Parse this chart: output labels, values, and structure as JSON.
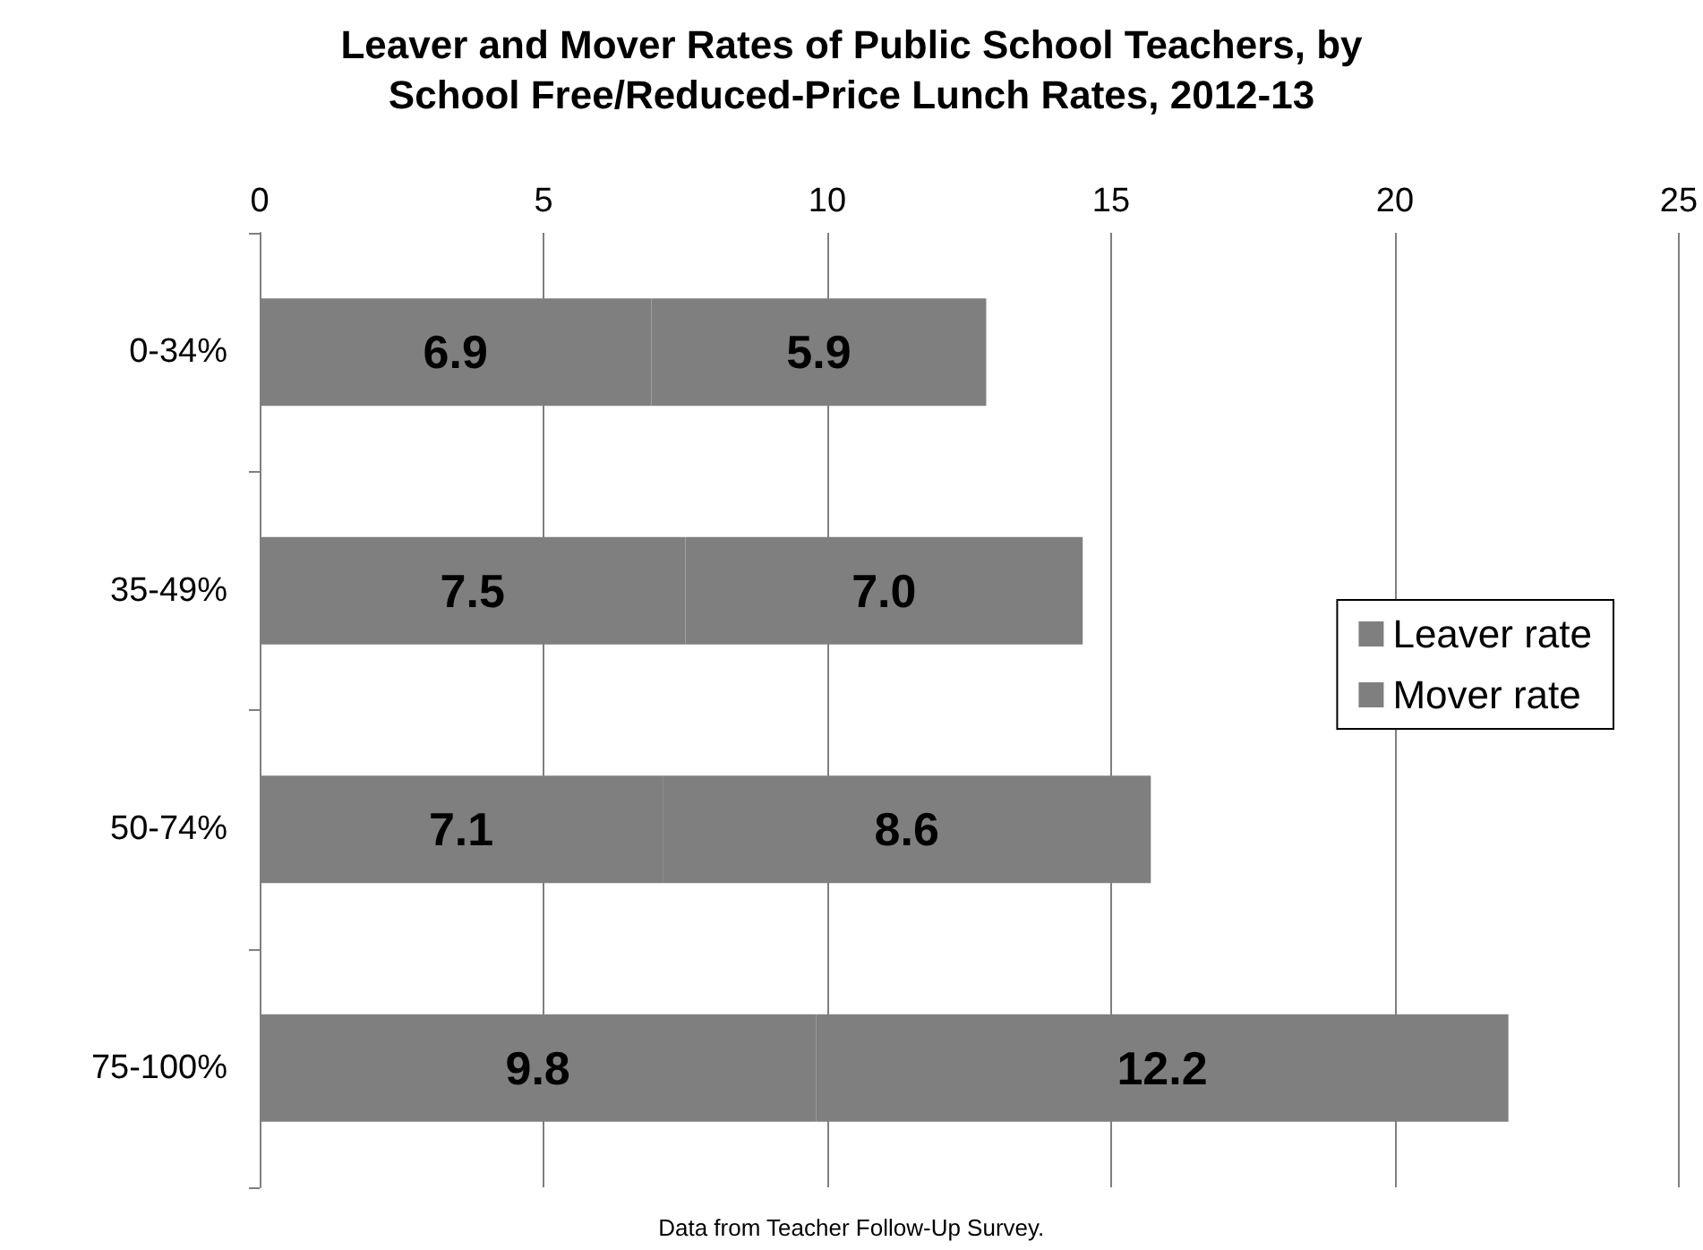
{
  "chart_data": {
    "type": "bar",
    "orientation": "horizontal",
    "stacked": true,
    "title": "Leaver and Mover Rates of Public School Teachers, by\nSchool Free/Reduced-Price Lunch Rates, 2012-13",
    "categories": [
      "0-34%",
      "35-49%",
      "50-74%",
      "75-100%"
    ],
    "series": [
      {
        "name": "Leaver rate",
        "color": "#7f7f7f",
        "values": [
          6.9,
          7.5,
          7.1,
          9.8
        ]
      },
      {
        "name": "Mover rate",
        "color": "#7f7f7f",
        "values": [
          5.9,
          7.0,
          8.6,
          12.2
        ],
        "value_labels": [
          "5.9",
          "7.0",
          "8.6",
          "12.2"
        ]
      }
    ],
    "xlim": [
      0,
      25
    ],
    "xticks": [
      0,
      5,
      10,
      15,
      20,
      25
    ],
    "grid": "x",
    "legend": "right",
    "data_labels": true,
    "annotations": [
      "Data from Teacher Follow-Up Survey."
    ]
  }
}
